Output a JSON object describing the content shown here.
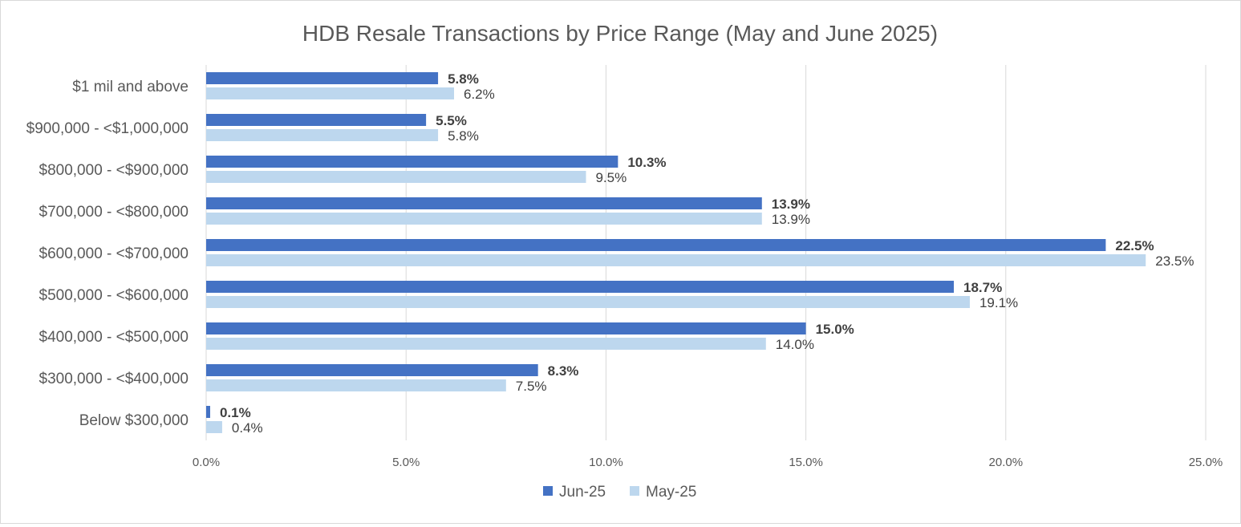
{
  "chart_data": {
    "type": "bar",
    "orientation": "horizontal",
    "title": "HDB Resale Transactions by Price Range (May and June 2025)",
    "categories": [
      "$1 mil and above",
      "$900,000 - <$1,000,000",
      "$800,000 - <$900,000",
      "$700,000 - <$800,000",
      "$600,000 - <$700,000",
      "$500,000 - <$600,000",
      "$400,000 - <$500,000",
      "$300,000 - <$400,000",
      "Below $300,000"
    ],
    "series": [
      {
        "name": "Jun-25",
        "color": "#4472c4",
        "values": [
          5.8,
          5.5,
          10.3,
          13.9,
          22.5,
          18.7,
          15.0,
          8.3,
          0.1
        ],
        "labels": [
          "5.8%",
          "5.5%",
          "10.3%",
          "13.9%",
          "22.5%",
          "18.7%",
          "15.0%",
          "8.3%",
          "0.1%"
        ]
      },
      {
        "name": "May-25",
        "color": "#bdd7ee",
        "values": [
          6.2,
          5.8,
          9.5,
          13.9,
          23.5,
          19.1,
          14.0,
          7.5,
          0.4
        ],
        "labels": [
          "6.2%",
          "5.8%",
          "9.5%",
          "13.9%",
          "23.5%",
          "19.1%",
          "14.0%",
          "7.5%",
          "0.4%"
        ]
      }
    ],
    "xlim": [
      0,
      25
    ],
    "xticks": [
      0,
      5,
      10,
      15,
      20,
      25
    ],
    "xtick_labels": [
      "0.0%",
      "5.0%",
      "10.0%",
      "15.0%",
      "20.0%",
      "25.0%"
    ],
    "grid": true,
    "gridline_color": "#d9d9d9",
    "legend_position": "bottom"
  }
}
